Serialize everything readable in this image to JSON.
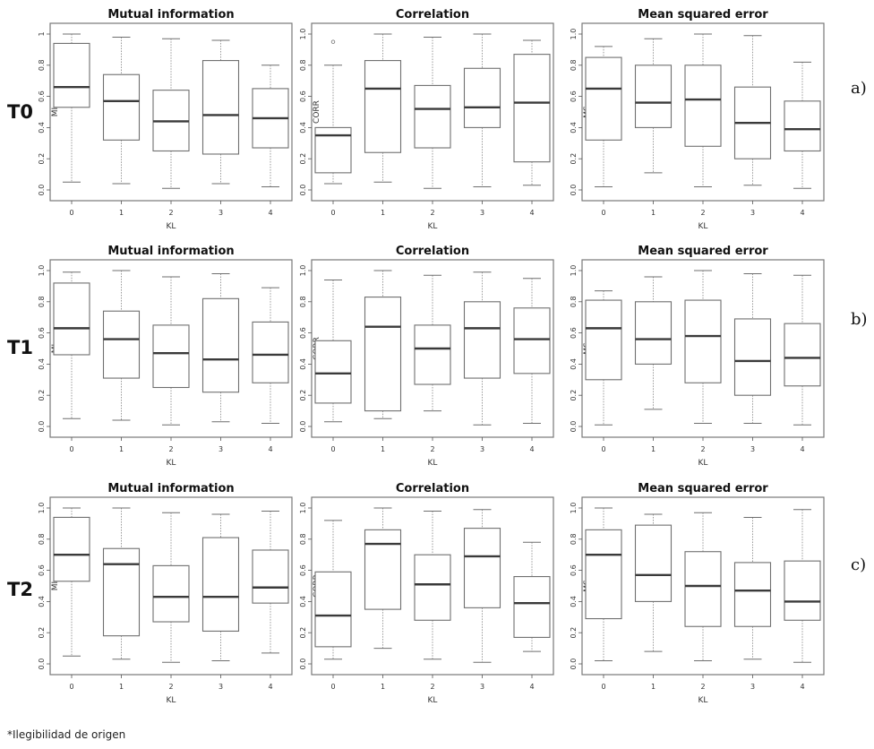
{
  "rows": [
    {
      "label": "T0",
      "tag": "a)"
    },
    {
      "label": "T1",
      "tag": "b)"
    },
    {
      "label": "T2",
      "tag": "c)"
    }
  ],
  "footnote": "*Ilegibilidad de origen",
  "colors": {
    "box": "#6f6f6f",
    "median": "#3a3a3a",
    "whisker": "#9a9a9a",
    "frame": "#777777"
  },
  "chart_data": [
    {
      "type": "box",
      "title": "Mutual information",
      "xlabel": "KL",
      "ylabel": "MI",
      "categories": [
        "0",
        "1",
        "2",
        "3",
        "4"
      ],
      "ylim": [
        0,
        1
      ],
      "yticks": [
        "0.0",
        "0.2",
        "0.4",
        "0.6",
        "0.8",
        "1"
      ],
      "outliers": [
        [],
        [],
        [],
        [],
        []
      ],
      "boxes": [
        [
          0.05,
          0.53,
          0.66,
          0.94,
          1.0
        ],
        [
          0.04,
          0.32,
          0.57,
          0.74,
          0.98
        ],
        [
          0.01,
          0.25,
          0.44,
          0.64,
          0.97
        ],
        [
          0.04,
          0.23,
          0.48,
          0.83,
          0.96
        ],
        [
          0.02,
          0.27,
          0.46,
          0.65,
          0.8
        ]
      ]
    },
    {
      "type": "box",
      "title": "Correlation",
      "xlabel": "KL",
      "ylabel": "CORR",
      "categories": [
        "0",
        "1",
        "2",
        "3",
        "4"
      ],
      "ylim": [
        0,
        1
      ],
      "yticks": [
        "0.0",
        "0.2",
        "0.4",
        "0.6",
        "0.8",
        "1.0"
      ],
      "outliers": [
        [
          0.95
        ],
        [],
        [],
        [],
        []
      ],
      "boxes": [
        [
          0.04,
          0.11,
          0.35,
          0.4,
          0.8
        ],
        [
          0.05,
          0.24,
          0.65,
          0.83,
          1.0
        ],
        [
          0.01,
          0.27,
          0.52,
          0.67,
          0.98
        ],
        [
          0.02,
          0.4,
          0.53,
          0.78,
          1.0
        ],
        [
          0.03,
          0.18,
          0.56,
          0.87,
          0.96
        ]
      ]
    },
    {
      "type": "box",
      "title": "Mean squared error",
      "xlabel": "KL",
      "ylabel": "MS",
      "categories": [
        "0",
        "1",
        "2",
        "3",
        "4"
      ],
      "ylim": [
        0,
        1
      ],
      "yticks": [
        "0.0",
        "0.2",
        "0.4",
        "0.6",
        "0.8",
        "1.0"
      ],
      "outliers": [
        [],
        [],
        [],
        [],
        []
      ],
      "boxes": [
        [
          0.02,
          0.32,
          0.65,
          0.85,
          0.92
        ],
        [
          0.11,
          0.4,
          0.56,
          0.8,
          0.97
        ],
        [
          0.02,
          0.28,
          0.58,
          0.8,
          1.0
        ],
        [
          0.03,
          0.2,
          0.43,
          0.66,
          0.99
        ],
        [
          0.01,
          0.25,
          0.39,
          0.57,
          0.82
        ]
      ]
    },
    {
      "type": "box",
      "title": "Mutual information",
      "xlabel": "KL",
      "ylabel": "MI",
      "categories": [
        "0",
        "1",
        "2",
        "3",
        "4"
      ],
      "ylim": [
        0,
        1
      ],
      "yticks": [
        "0.0",
        "0.2",
        "0.4",
        "0.6",
        "0.8",
        "1.0"
      ],
      "outliers": [
        [],
        [],
        [],
        [],
        []
      ],
      "boxes": [
        [
          0.05,
          0.46,
          0.63,
          0.92,
          0.99
        ],
        [
          0.04,
          0.31,
          0.56,
          0.74,
          1.0
        ],
        [
          0.01,
          0.25,
          0.47,
          0.65,
          0.96
        ],
        [
          0.03,
          0.22,
          0.43,
          0.82,
          0.98
        ],
        [
          0.02,
          0.28,
          0.46,
          0.67,
          0.89
        ]
      ]
    },
    {
      "type": "box",
      "title": "Correlation",
      "xlabel": "KL",
      "ylabel": "CORR",
      "categories": [
        "0",
        "1",
        "2",
        "3",
        "4"
      ],
      "ylim": [
        0,
        1
      ],
      "yticks": [
        "0.0",
        "0.2",
        "0.4",
        "0.6",
        "0.8",
        "1.0"
      ],
      "outliers": [
        [],
        [],
        [],
        [],
        []
      ],
      "boxes": [
        [
          0.03,
          0.15,
          0.34,
          0.55,
          0.94
        ],
        [
          0.05,
          0.1,
          0.64,
          0.83,
          1.0
        ],
        [
          0.1,
          0.27,
          0.5,
          0.65,
          0.97
        ],
        [
          0.01,
          0.31,
          0.63,
          0.8,
          0.99
        ],
        [
          0.02,
          0.34,
          0.56,
          0.76,
          0.95
        ]
      ]
    },
    {
      "type": "box",
      "title": "Mean squared error",
      "xlabel": "KL",
      "ylabel": "MS",
      "categories": [
        "0",
        "1",
        "2",
        "3",
        "4"
      ],
      "ylim": [
        0,
        1
      ],
      "yticks": [
        "0.0",
        "0.2",
        "0.4",
        "0.6",
        "0.8",
        "1.0"
      ],
      "outliers": [
        [],
        [],
        [],
        [],
        []
      ],
      "boxes": [
        [
          0.01,
          0.3,
          0.63,
          0.81,
          0.87
        ],
        [
          0.11,
          0.4,
          0.56,
          0.8,
          0.96
        ],
        [
          0.02,
          0.28,
          0.58,
          0.81,
          1.0
        ],
        [
          0.02,
          0.2,
          0.42,
          0.69,
          0.98
        ],
        [
          0.01,
          0.26,
          0.44,
          0.66,
          0.97
        ]
      ]
    },
    {
      "type": "box",
      "title": "Mutual information",
      "xlabel": "KL",
      "ylabel": "MI",
      "categories": [
        "0",
        "1",
        "2",
        "3",
        "4"
      ],
      "ylim": [
        0,
        1
      ],
      "yticks": [
        "0.0",
        "0.2",
        "0.4",
        "0.6",
        "0.8",
        "1.0"
      ],
      "outliers": [
        [],
        [],
        [],
        [],
        []
      ],
      "boxes": [
        [
          0.05,
          0.53,
          0.7,
          0.94,
          1.0
        ],
        [
          0.03,
          0.18,
          0.64,
          0.74,
          1.0
        ],
        [
          0.01,
          0.27,
          0.43,
          0.63,
          0.97
        ],
        [
          0.02,
          0.21,
          0.43,
          0.81,
          0.96
        ],
        [
          0.07,
          0.39,
          0.49,
          0.73,
          0.98
        ]
      ]
    },
    {
      "type": "box",
      "title": "Correlation",
      "xlabel": "KL",
      "ylabel": "CORR",
      "categories": [
        "0",
        "1",
        "2",
        "3",
        "4"
      ],
      "ylim": [
        0,
        1
      ],
      "yticks": [
        "0.0",
        "0.2",
        "0.4",
        "0.6",
        "0.8",
        "1.0"
      ],
      "outliers": [
        [],
        [],
        [],
        [],
        []
      ],
      "boxes": [
        [
          0.03,
          0.11,
          0.31,
          0.59,
          0.92
        ],
        [
          0.1,
          0.35,
          0.77,
          0.86,
          1.0
        ],
        [
          0.03,
          0.28,
          0.51,
          0.7,
          0.98
        ],
        [
          0.01,
          0.36,
          0.69,
          0.87,
          0.99
        ],
        [
          0.08,
          0.17,
          0.39,
          0.56,
          0.78
        ]
      ]
    },
    {
      "type": "box",
      "title": "Mean squared error",
      "xlabel": "KL",
      "ylabel": "MS",
      "categories": [
        "0",
        "1",
        "2",
        "3",
        "4"
      ],
      "ylim": [
        0,
        1
      ],
      "yticks": [
        "0.0",
        "0.2",
        "0.4",
        "0.6",
        "0.8",
        "1.0"
      ],
      "outliers": [
        [],
        [],
        [],
        [],
        []
      ],
      "boxes": [
        [
          0.02,
          0.29,
          0.7,
          0.86,
          1.0
        ],
        [
          0.08,
          0.4,
          0.57,
          0.89,
          0.96
        ],
        [
          0.02,
          0.24,
          0.5,
          0.72,
          0.97
        ],
        [
          0.03,
          0.24,
          0.47,
          0.65,
          0.94
        ],
        [
          0.01,
          0.28,
          0.4,
          0.66,
          0.99
        ]
      ]
    }
  ]
}
